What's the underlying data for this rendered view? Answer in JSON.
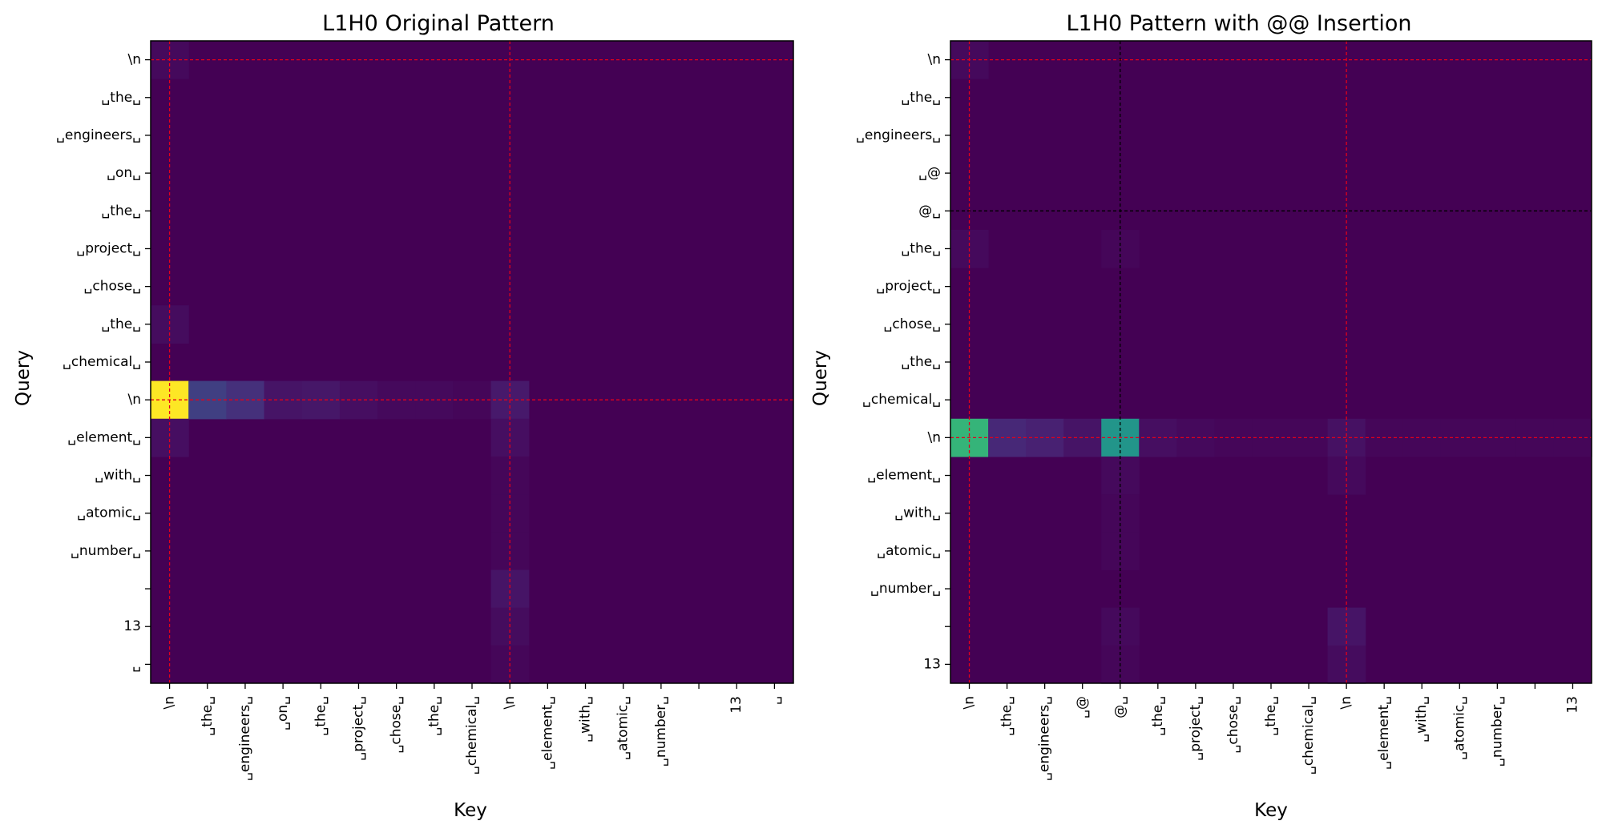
{
  "colors": {
    "background": "#ffffff",
    "axis": "#000000",
    "guide_red": "#e3001b",
    "guide_black": "#000000",
    "colormap": "viridis"
  },
  "chart_data": [
    {
      "type": "heatmap",
      "title": "L1H0 Original Pattern",
      "xlabel": "Key",
      "ylabel": "Query",
      "x_tick_labels": [
        "\\n",
        "␣the␣",
        "␣engineers␣",
        "␣on␣",
        "␣the␣",
        "␣project␣",
        "␣chose␣",
        "␣the␣",
        "␣chemical␣",
        "\\n",
        "␣element␣",
        "␣with␣",
        "␣atomic␣",
        "␣number␣",
        "",
        "13",
        "␣"
      ],
      "y_tick_labels": [
        "\\n",
        "␣the␣",
        "␣engineers␣",
        "␣on␣",
        "␣the␣",
        "␣project␣",
        "␣chose␣",
        "␣the␣",
        "␣chemical␣",
        "\\n",
        "␣element␣",
        "␣with␣",
        "␣atomic␣",
        "␣number␣",
        "",
        "13",
        "␣"
      ],
      "value_range": [
        0,
        1
      ],
      "cells": [
        {
          "row": 0,
          "col": 0,
          "value": 0.03
        },
        {
          "row": 7,
          "col": 0,
          "value": 0.04
        },
        {
          "row": 9,
          "col": 0,
          "value": 1.0
        },
        {
          "row": 9,
          "col": 1,
          "value": 0.2
        },
        {
          "row": 9,
          "col": 2,
          "value": 0.16
        },
        {
          "row": 9,
          "col": 3,
          "value": 0.07
        },
        {
          "row": 9,
          "col": 4,
          "value": 0.08
        },
        {
          "row": 9,
          "col": 5,
          "value": 0.05
        },
        {
          "row": 9,
          "col": 6,
          "value": 0.03
        },
        {
          "row": 9,
          "col": 7,
          "value": 0.03
        },
        {
          "row": 9,
          "col": 8,
          "value": 0.02
        },
        {
          "row": 9,
          "col": 9,
          "value": 0.09
        },
        {
          "row": 10,
          "col": 0,
          "value": 0.05
        },
        {
          "row": 10,
          "col": 9,
          "value": 0.05
        },
        {
          "row": 11,
          "col": 9,
          "value": 0.02
        },
        {
          "row": 12,
          "col": 9,
          "value": 0.02
        },
        {
          "row": 13,
          "col": 9,
          "value": 0.02
        },
        {
          "row": 14,
          "col": 9,
          "value": 0.07
        },
        {
          "row": 15,
          "col": 9,
          "value": 0.04
        },
        {
          "row": 16,
          "col": 9,
          "value": 0.02
        }
      ],
      "guide_lines": [
        {
          "axis": "row",
          "index": 0,
          "color": "red"
        },
        {
          "axis": "row",
          "index": 9,
          "color": "red"
        },
        {
          "axis": "col",
          "index": 0,
          "color": "red"
        },
        {
          "axis": "col",
          "index": 9,
          "color": "red"
        }
      ]
    },
    {
      "type": "heatmap",
      "title": "L1H0 Pattern with @@ Insertion",
      "xlabel": "Key",
      "ylabel": "Query",
      "x_tick_labels": [
        "\\n",
        "␣the␣",
        "␣engineers␣",
        "␣@",
        "@␣",
        "␣the␣",
        "␣project␣",
        "␣chose␣",
        "␣the␣",
        "␣chemical␣",
        "\\n",
        "␣element␣",
        "␣with␣",
        "␣atomic␣",
        "␣number␣",
        "",
        "13"
      ],
      "y_tick_labels": [
        "\\n",
        "␣the␣",
        "␣engineers␣",
        "␣@",
        "@␣",
        "␣the␣",
        "␣project␣",
        "␣chose␣",
        "␣the␣",
        "␣chemical␣",
        "\\n",
        "␣element␣",
        "␣with␣",
        "␣atomic␣",
        "␣number␣",
        "",
        "13"
      ],
      "value_range": [
        0,
        1
      ],
      "cells": [
        {
          "row": 0,
          "col": 0,
          "value": 0.03
        },
        {
          "row": 5,
          "col": 0,
          "value": 0.03
        },
        {
          "row": 5,
          "col": 4,
          "value": 0.02
        },
        {
          "row": 10,
          "col": 0,
          "value": 0.66
        },
        {
          "row": 10,
          "col": 1,
          "value": 0.14
        },
        {
          "row": 10,
          "col": 2,
          "value": 0.12
        },
        {
          "row": 10,
          "col": 3,
          "value": 0.07
        },
        {
          "row": 10,
          "col": 4,
          "value": 0.52
        },
        {
          "row": 10,
          "col": 5,
          "value": 0.05
        },
        {
          "row": 10,
          "col": 6,
          "value": 0.03
        },
        {
          "row": 10,
          "col": 7,
          "value": 0.02
        },
        {
          "row": 10,
          "col": 8,
          "value": 0.02
        },
        {
          "row": 10,
          "col": 9,
          "value": 0.02
        },
        {
          "row": 10,
          "col": 10,
          "value": 0.06
        },
        {
          "row": 10,
          "col": 11,
          "value": 0.02
        },
        {
          "row": 10,
          "col": 12,
          "value": 0.02
        },
        {
          "row": 10,
          "col": 13,
          "value": 0.02
        },
        {
          "row": 10,
          "col": 14,
          "value": 0.02
        },
        {
          "row": 10,
          "col": 15,
          "value": 0.02
        },
        {
          "row": 10,
          "col": 16,
          "value": 0.02
        },
        {
          "row": 11,
          "col": 4,
          "value": 0.03
        },
        {
          "row": 11,
          "col": 10,
          "value": 0.03
        },
        {
          "row": 12,
          "col": 4,
          "value": 0.02
        },
        {
          "row": 13,
          "col": 4,
          "value": 0.02
        },
        {
          "row": 15,
          "col": 4,
          "value": 0.03
        },
        {
          "row": 15,
          "col": 10,
          "value": 0.07
        },
        {
          "row": 16,
          "col": 4,
          "value": 0.02
        },
        {
          "row": 16,
          "col": 10,
          "value": 0.04
        }
      ],
      "guide_lines": [
        {
          "axis": "row",
          "index": 0,
          "color": "red"
        },
        {
          "axis": "row",
          "index": 10,
          "color": "red"
        },
        {
          "axis": "col",
          "index": 0,
          "color": "red"
        },
        {
          "axis": "col",
          "index": 10,
          "color": "red"
        },
        {
          "axis": "row",
          "index": 4,
          "color": "black"
        },
        {
          "axis": "col",
          "index": 4,
          "color": "black"
        }
      ]
    }
  ]
}
